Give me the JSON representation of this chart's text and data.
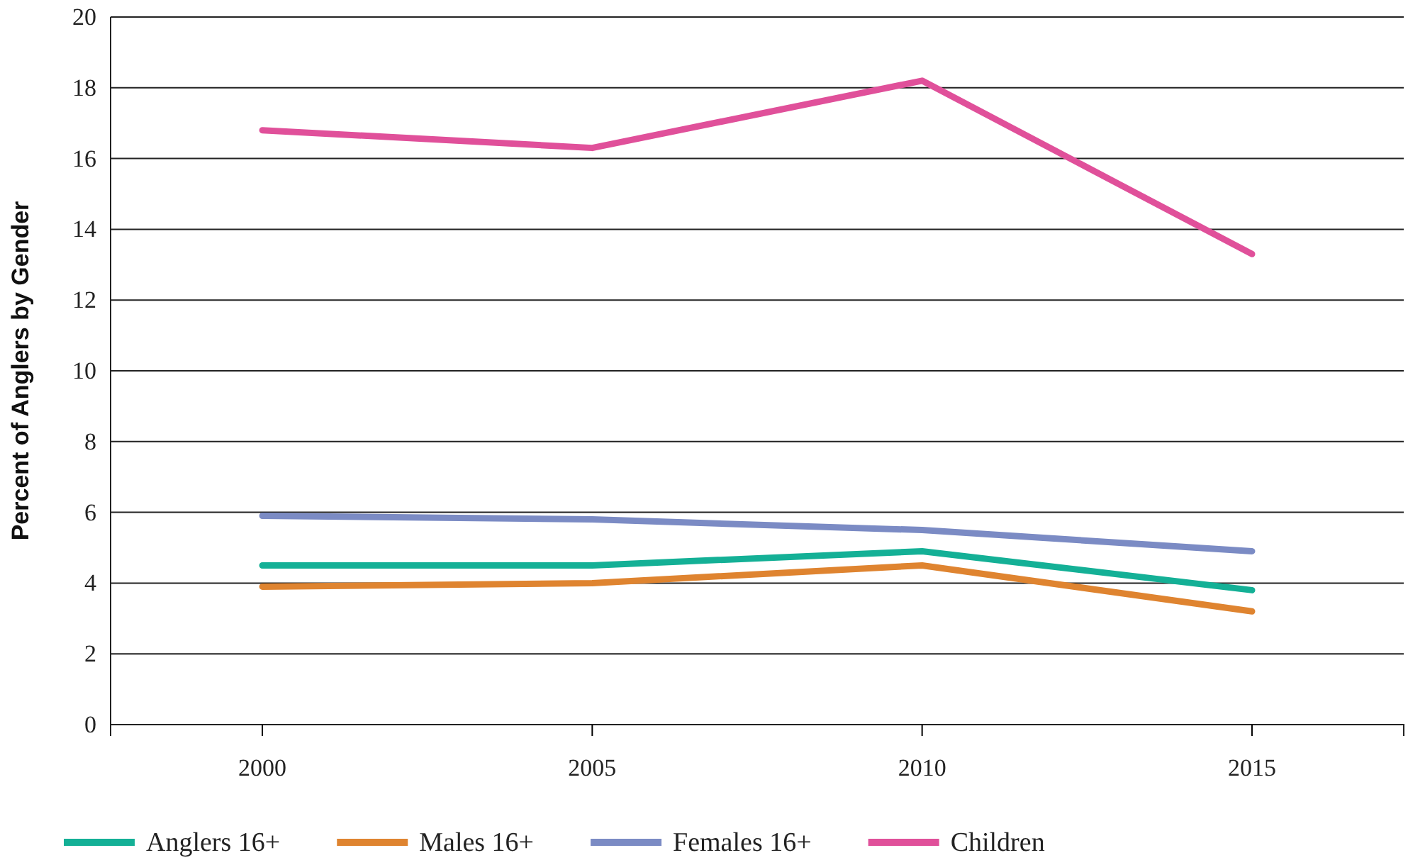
{
  "chart_data": {
    "type": "line",
    "ylabel": "Percent of Anglers by Gender",
    "x": [
      2000,
      2005,
      2010,
      2015
    ],
    "xlim": [
      1997.7,
      2017.3
    ],
    "xticks": [
      2000,
      2005,
      2010,
      2015
    ],
    "ylim": [
      0,
      20
    ],
    "yticks": [
      0,
      2,
      4,
      6,
      8,
      10,
      12,
      14,
      16,
      18,
      20
    ],
    "grid": "y",
    "legend": "bottom",
    "marker": "none",
    "line_style": "solid",
    "series": [
      {
        "name": "Anglers 16+",
        "color": "#14b096",
        "values": [
          4.5,
          4.5,
          4.9,
          3.8
        ]
      },
      {
        "name": "Males 16+",
        "color": "#df8430",
        "values": [
          3.9,
          4.0,
          4.5,
          3.2
        ]
      },
      {
        "name": "Females 16+",
        "color": "#7b8bc4",
        "values": [
          5.9,
          5.8,
          5.5,
          4.9
        ]
      },
      {
        "name": "Children",
        "color": "#e0509a",
        "values": [
          16.8,
          16.3,
          18.2,
          13.3
        ]
      }
    ]
  }
}
